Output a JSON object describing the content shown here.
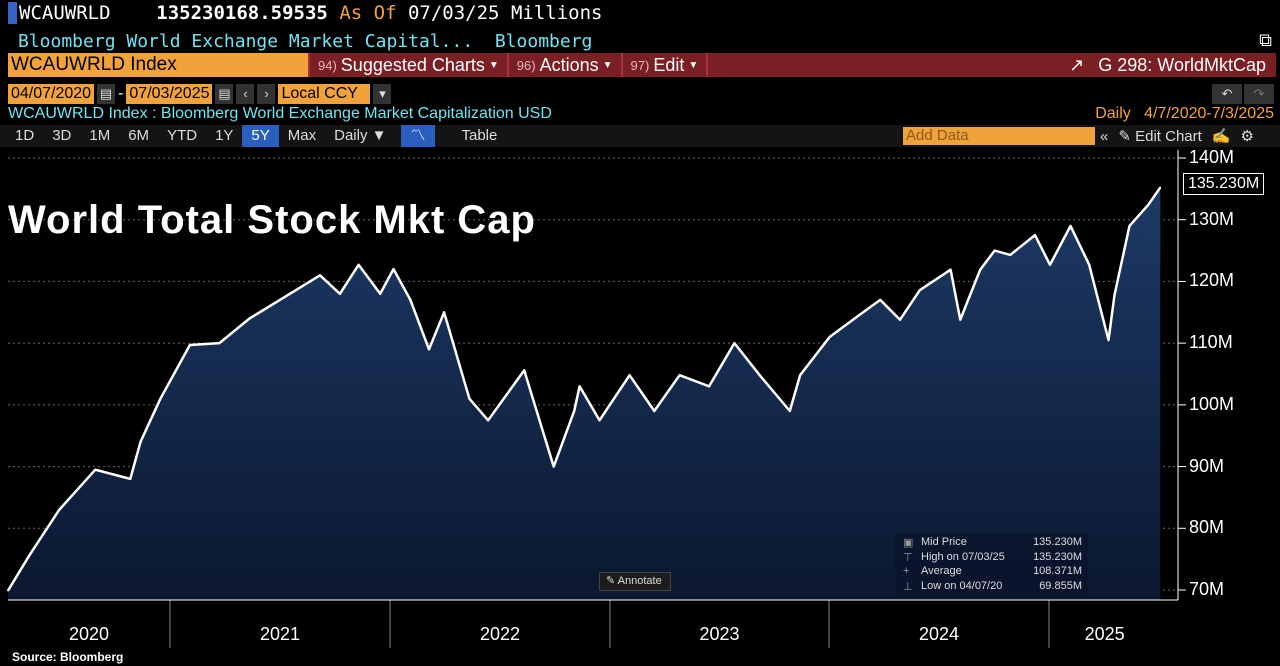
{
  "header": {
    "ticker": "WCAUWRLD",
    "value": "135230168.59535",
    "as_of_label": "As Of",
    "as_of_date": "07/03/25",
    "units": "Millions",
    "description": "Bloomberg World Exchange Market Capital...",
    "source": "Bloomberg"
  },
  "toolbar": {
    "security": "WCAUWRLD Index",
    "menus": [
      {
        "num": "94)",
        "label": "Suggested Charts"
      },
      {
        "num": "96)",
        "label": "Actions"
      },
      {
        "num": "97)",
        "label": "Edit"
      }
    ],
    "page": "G 298: WorldMktCap"
  },
  "range": {
    "start": "04/07/2020",
    "sep": "-",
    "end": "07/03/2025",
    "currency": "Local CCY"
  },
  "subtitle": "WCAUWRLD Index : Bloomberg World Exchange Market Capitalization USD",
  "period_info": "Daily   4/7/2020-7/3/2025",
  "tabs": [
    {
      "label": "1D"
    },
    {
      "label": "3D"
    },
    {
      "label": "1M"
    },
    {
      "label": "6M"
    },
    {
      "label": "YTD"
    },
    {
      "label": "1Y"
    },
    {
      "label": "5Y"
    },
    {
      "label": "Max"
    },
    {
      "label": "Daily ▼"
    }
  ],
  "selected_tab": "5Y",
  "table_label": "Table",
  "add_data_placeholder": "Add Data",
  "edit_chart_label": "Edit Chart",
  "annotate_label": "Annotate",
  "footer_source": "Source: Bloomberg",
  "legend": [
    {
      "label": "Mid Price",
      "value": "135.230M"
    },
    {
      "label": "High on 07/03/25",
      "value": "135.230M"
    },
    {
      "label": "Average",
      "value": "108.371M"
    },
    {
      "label": "Low on 04/07/20",
      "value": "69.855M"
    }
  ],
  "colors": {
    "line": "#ffffff",
    "area_top": "#1d3a66",
    "area_bottom": "#0b1730",
    "accent_orange": "#f2a23a",
    "menu_red": "#7a1f24",
    "cyan": "#6fe3f0"
  },
  "chart_data": {
    "type": "area",
    "title": "World Total Stock Mkt Cap",
    "last_value_label": "135.230M",
    "ylim": [
      70,
      140
    ],
    "y_ticks": [
      "70M",
      "80M",
      "90M",
      "100M",
      "110M",
      "120M",
      "130M",
      "140M"
    ],
    "x_ticks": [
      "2020",
      "2021",
      "2022",
      "2023",
      "2024",
      "2025"
    ],
    "grid": true,
    "series": [
      {
        "name": "Mid Price",
        "points": [
          [
            "2020-04-07",
            69.9
          ],
          [
            "2020-05-13",
            75.7
          ],
          [
            "2020-07-01",
            83
          ],
          [
            "2020-08-30",
            89.5
          ],
          [
            "2020-10-27",
            88
          ],
          [
            "2020-11-13",
            94
          ],
          [
            "2020-12-16",
            101
          ],
          [
            "2021-02-03",
            109.7
          ],
          [
            "2021-03-24",
            110
          ],
          [
            "2021-05-13",
            114
          ],
          [
            "2021-07-19",
            118
          ],
          [
            "2021-09-07",
            121
          ],
          [
            "2021-10-10",
            118
          ],
          [
            "2021-11-10",
            122.7
          ],
          [
            "2021-12-16",
            118
          ],
          [
            "2022-01-07",
            122
          ],
          [
            "2022-02-04",
            117
          ],
          [
            "2022-03-07",
            109
          ],
          [
            "2022-04-01",
            115
          ],
          [
            "2022-05-13",
            101
          ],
          [
            "2022-06-13",
            97.5
          ],
          [
            "2022-08-12",
            105.6
          ],
          [
            "2022-09-30",
            90
          ],
          [
            "2022-11-03",
            99
          ],
          [
            "2022-11-12",
            103
          ],
          [
            "2022-12-15",
            97.5
          ],
          [
            "2023-02-03",
            104.8
          ],
          [
            "2023-03-16",
            99
          ],
          [
            "2023-04-27",
            104.8
          ],
          [
            "2023-06-15",
            103
          ],
          [
            "2023-07-27",
            110
          ],
          [
            "2023-09-07",
            104.8
          ],
          [
            "2023-10-27",
            99
          ],
          [
            "2023-11-13",
            104.8
          ],
          [
            "2024-01-01",
            111
          ],
          [
            "2024-02-20",
            114.6
          ],
          [
            "2024-03-25",
            117
          ],
          [
            "2024-04-27",
            113.8
          ],
          [
            "2024-05-30",
            118.6
          ],
          [
            "2024-07-20",
            121.9
          ],
          [
            "2024-08-05",
            113.8
          ],
          [
            "2024-09-07",
            121.9
          ],
          [
            "2024-10-01",
            125
          ],
          [
            "2024-10-27",
            124.3
          ],
          [
            "2024-12-07",
            127.5
          ],
          [
            "2025-01-01",
            122.7
          ],
          [
            "2025-02-04",
            129
          ],
          [
            "2025-03-07",
            122.7
          ],
          [
            "2025-04-08",
            110.5
          ],
          [
            "2025-04-18",
            117.8
          ],
          [
            "2025-05-13",
            129
          ],
          [
            "2025-06-13",
            132.4
          ],
          [
            "2025-07-03",
            135.23
          ]
        ]
      }
    ]
  }
}
